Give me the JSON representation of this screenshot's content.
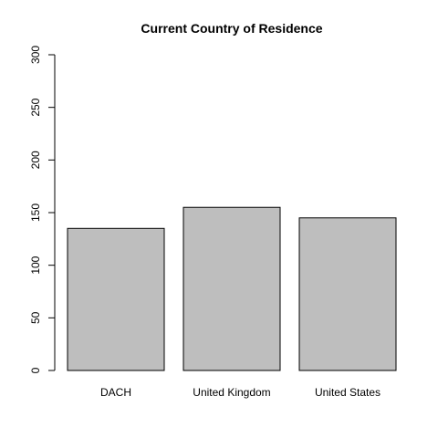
{
  "chart_data": {
    "type": "bar",
    "title": "Current Country of Residence",
    "categories": [
      "DACH",
      "United Kingdom",
      "United States"
    ],
    "values": [
      135,
      155,
      145
    ],
    "xlabel": "",
    "ylabel": "",
    "ylim": [
      0,
      300
    ],
    "yticks": [
      0,
      50,
      100,
      150,
      200,
      250,
      300
    ],
    "grid": false,
    "legend": "none",
    "bar_color": "#bebebe",
    "bar_border_color": "#000000"
  }
}
